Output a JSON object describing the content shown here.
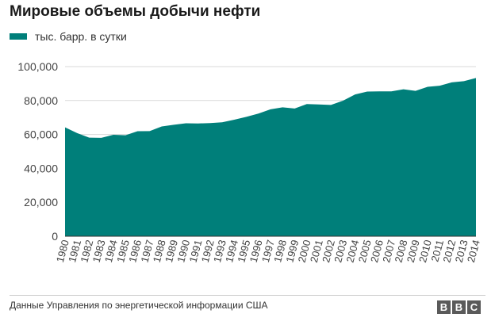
{
  "title": "Мировые объемы добычи нефти",
  "legend": {
    "label": "тыс. барр. в сутки",
    "color": "#007f7a"
  },
  "source": "Данные Управления по энергетической информации США",
  "logo": {
    "letters": [
      "B",
      "B",
      "C"
    ]
  },
  "chart_data": {
    "type": "area",
    "title": "Мировые объемы добычи нефти",
    "xlabel": "",
    "ylabel": "",
    "x": [
      "1980",
      "1981",
      "1982",
      "1983",
      "1984",
      "1985",
      "1986",
      "1987",
      "1988",
      "1989",
      "1990",
      "1991",
      "1992",
      "1993",
      "1994",
      "1995",
      "1996",
      "1997",
      "1998",
      "1999",
      "2000",
      "2001",
      "2002",
      "2003",
      "2004",
      "2005",
      "2006",
      "2007",
      "2008",
      "2009",
      "2010",
      "2011",
      "2012",
      "2013",
      "2014"
    ],
    "series": [
      {
        "name": "тыс. барр. в сутки",
        "color": "#007f7a",
        "values": [
          64200,
          60800,
          58100,
          58000,
          59800,
          59500,
          61900,
          62000,
          64700,
          65700,
          66600,
          66500,
          66700,
          67200,
          68700,
          70400,
          72300,
          74800,
          76000,
          75300,
          77900,
          77700,
          77400,
          79900,
          83600,
          85300,
          85400,
          85400,
          86600,
          85700,
          88100,
          88700,
          90700,
          91400,
          93300
        ]
      }
    ],
    "ylim": [
      0,
      100000
    ],
    "yticks": [
      0,
      20000,
      40000,
      60000,
      80000,
      100000
    ],
    "ytick_labels": [
      "0",
      "20,000",
      "40,000",
      "60,000",
      "80,000",
      "100,000"
    ],
    "grid": true,
    "legend_position": "top-left"
  }
}
